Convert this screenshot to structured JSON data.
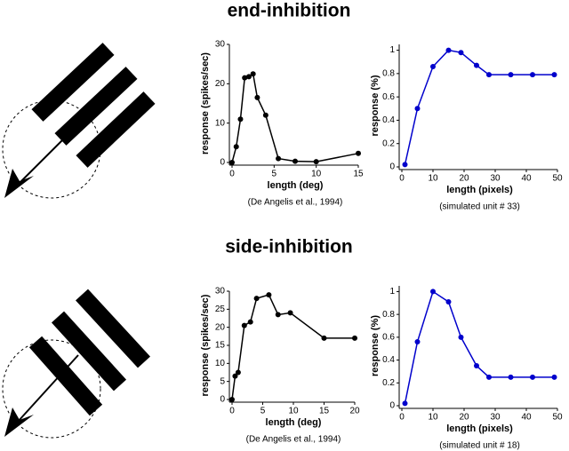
{
  "sections": [
    {
      "title": "end-inhibition"
    },
    {
      "title": "side-inhibition"
    }
  ],
  "chart_data": [
    {
      "type": "line",
      "xlabel": "length (deg)",
      "ylabel": "response (spikes/sec)",
      "caption": "(De Angelis et al., 1994)",
      "x": [
        0,
        0.5,
        1,
        1.5,
        2,
        2.5,
        3,
        4,
        5.5,
        7.5,
        10,
        15
      ],
      "values": [
        0,
        4,
        11,
        21.5,
        21.8,
        22.5,
        16.5,
        12,
        1,
        0.3,
        0.2,
        2.3
      ],
      "color": "#000000",
      "xlim": [
        0,
        15
      ],
      "xticks": [
        0,
        5,
        10,
        15
      ],
      "ylim": [
        0,
        30
      ],
      "yticks": [
        0,
        10,
        20,
        30
      ]
    },
    {
      "type": "line",
      "xlabel": "length (pixels)",
      "ylabel": "response (%)",
      "caption": "(simulated unit # 33)",
      "x": [
        1,
        5,
        10,
        15,
        19,
        24,
        28,
        35,
        42,
        49
      ],
      "values": [
        0.02,
        0.5,
        0.86,
        1.0,
        0.98,
        0.87,
        0.79,
        0.79,
        0.79,
        0.79
      ],
      "color": "#0000cc",
      "xlim": [
        0,
        50
      ],
      "xticks": [
        0,
        10,
        20,
        30,
        40,
        50
      ],
      "ylim": [
        0,
        1.05
      ],
      "yticks": [
        0,
        0.2,
        0.4,
        0.6,
        0.8,
        1
      ]
    },
    {
      "type": "line",
      "xlabel": "length (deg)",
      "ylabel": "response (spikes/sec)",
      "caption": "(De Angelis et al., 1994)",
      "x": [
        0,
        0.5,
        1,
        2,
        3,
        4,
        6,
        7.5,
        9.5,
        15,
        20
      ],
      "values": [
        0,
        6.5,
        7.5,
        20.5,
        21.5,
        28,
        29,
        23.5,
        24,
        17,
        17
      ],
      "color": "#000000",
      "xlim": [
        0,
        20
      ],
      "xticks": [
        0,
        5,
        10,
        15,
        20
      ],
      "ylim": [
        0,
        30
      ],
      "yticks": [
        0,
        5,
        10,
        15,
        20,
        25,
        30
      ]
    },
    {
      "type": "line",
      "xlabel": "length (pixels)",
      "ylabel": "response (%)",
      "caption": "(simulated unit # 18)",
      "x": [
        1,
        5,
        10,
        15,
        19,
        24,
        28,
        35,
        42,
        49
      ],
      "values": [
        0.02,
        0.56,
        1.0,
        0.91,
        0.6,
        0.35,
        0.25,
        0.25,
        0.25,
        0.25
      ],
      "color": "#0000cc",
      "xlim": [
        0,
        50
      ],
      "xticks": [
        0,
        10,
        20,
        30,
        40,
        50
      ],
      "ylim": [
        0,
        1.05
      ],
      "yticks": [
        0,
        0.2,
        0.4,
        0.6,
        0.8,
        1
      ]
    }
  ]
}
